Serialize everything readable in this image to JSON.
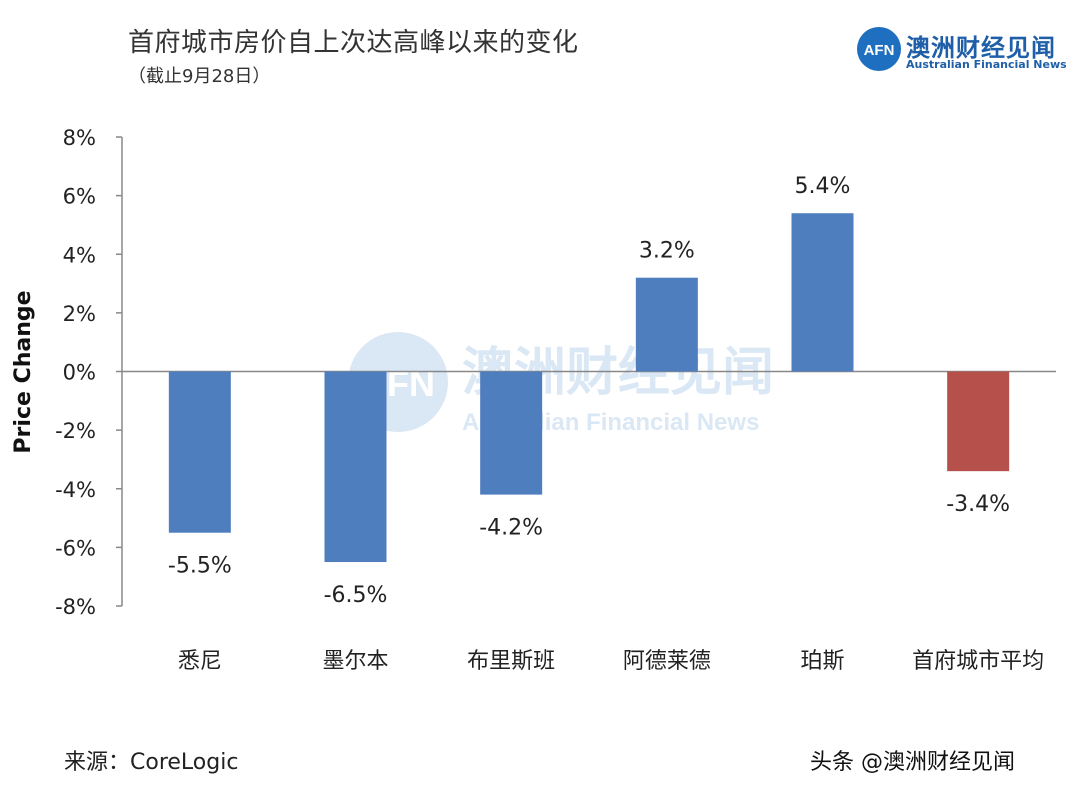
{
  "header": {
    "title": "首府城市房价自上次达高峰以来的变化",
    "subtitle": "（截止9月28日）"
  },
  "brand": {
    "logo_text": "AFN",
    "name": "澳洲财经见闻",
    "english": "Australian Financial News",
    "color": "#1f5fa8"
  },
  "watermark": {
    "logo_text": "AFN",
    "name": "澳洲财经见闻",
    "english": "Australian Financial News"
  },
  "chart_data": {
    "type": "bar",
    "title": "首府城市房价自上次达高峰以来的变化",
    "subtitle": "（截止9月28日）",
    "xlabel": "",
    "ylabel": "Price Change",
    "ylim": [
      -8,
      8
    ],
    "yticks": [
      8,
      6,
      4,
      2,
      0,
      -2,
      -4,
      -6,
      -8
    ],
    "ytick_labels": [
      "8%",
      "6%",
      "4%",
      "2%",
      "0%",
      "-2%",
      "-4%",
      "-6%",
      "-8%"
    ],
    "categories": [
      "悉尼",
      "墨尔本",
      "布里斯班",
      "阿德莱德",
      "珀斯",
      "首府城市平均"
    ],
    "values": [
      -5.5,
      -6.5,
      -4.2,
      3.2,
      5.4,
      -3.4
    ],
    "data_labels": [
      "-5.5%",
      "-6.5%",
      "-4.2%",
      "3.2%",
      "5.4%",
      "-3.4%"
    ],
    "colors": [
      "#4f7ebf",
      "#4f7ebf",
      "#4f7ebf",
      "#4f7ebf",
      "#4f7ebf",
      "#b5504b"
    ],
    "grid": false,
    "legend": "none"
  },
  "footer": {
    "source": "来源：CoreLogic",
    "credit": "头条 @澳洲财经见闻"
  }
}
